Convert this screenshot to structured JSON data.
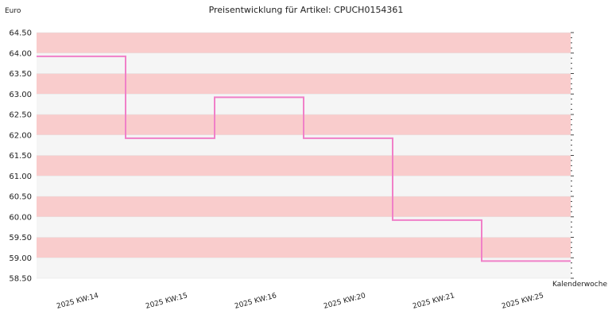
{
  "chart_data": {
    "type": "line",
    "title": "Preisentwicklung für Artikel: CPUCH0154361",
    "ylabel": "Euro",
    "xlabel": "Kalenderwoche",
    "categories": [
      "2025 KW:14",
      "2025 KW:15",
      "2025 KW:16",
      "2025 KW:20",
      "2025 KW:21",
      "2025 KW:25"
    ],
    "series": [
      {
        "values": [
          63.92,
          61.92,
          62.92,
          61.92,
          59.92,
          58.92
        ]
      }
    ],
    "step": true,
    "ylim": [
      58.5,
      64.5
    ],
    "yticks": [
      "58.50",
      "59.00",
      "59.50",
      "60.00",
      "60.50",
      "61.00",
      "61.50",
      "62.00",
      "62.50",
      "63.00",
      "63.50",
      "64.00",
      "64.50"
    ],
    "grid": true,
    "colors": {
      "line": "#f080c8",
      "band_pink": "#f9cccc",
      "band_grey": "#f5f5f5"
    }
  }
}
